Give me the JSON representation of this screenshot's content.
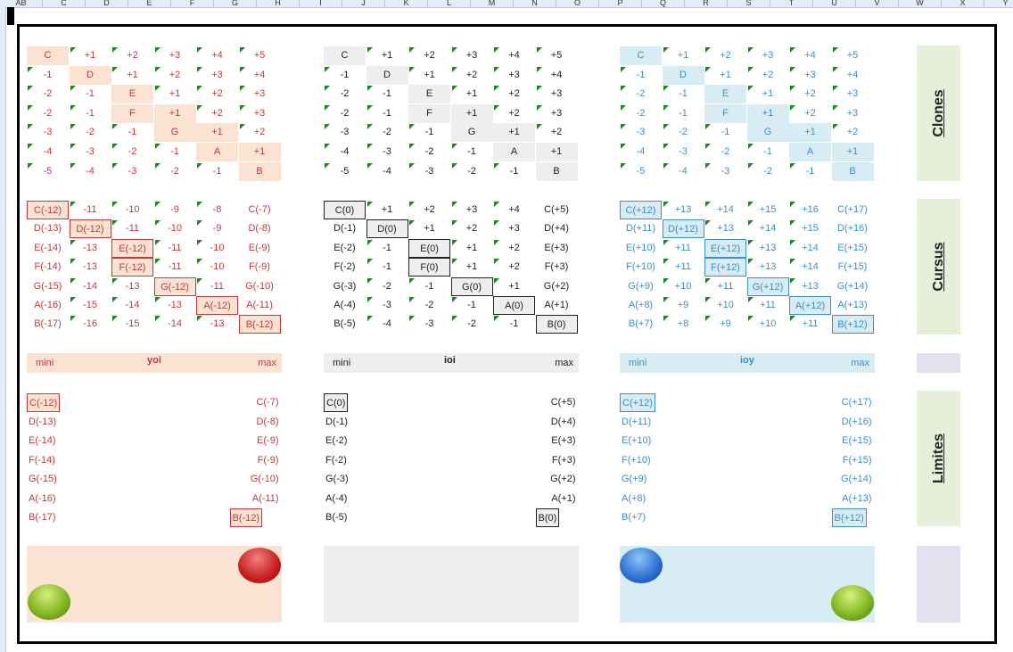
{
  "column_headers": [
    "AB",
    "C",
    "D",
    "E",
    "F",
    "G",
    "H",
    "I",
    "J",
    "K",
    "L",
    "M",
    "N",
    "O",
    "P",
    "Q",
    "R",
    "S",
    "T",
    "U",
    "V",
    "W",
    "X",
    "Y"
  ],
  "colors": {
    "red": "#c8383a",
    "gray": "#222222",
    "blue": "#3a8fd0",
    "red_bg": "#fbe3d3",
    "gray_bg": "#eeeeee",
    "blue_bg": "#d8edf3",
    "side_green": "#e6f0d8",
    "side_purple": "#e4e0ee"
  },
  "side_labels": {
    "clones": "Clones",
    "cursus": "Cursus",
    "limites": "Limites"
  },
  "clones": [
    [
      "C",
      "+1",
      "+2",
      "+3",
      "+4",
      "+5"
    ],
    [
      "-1",
      "D",
      "+1",
      "+2",
      "+3",
      "+4"
    ],
    [
      "-2",
      "-1",
      "E",
      "+1",
      "+2",
      "+3"
    ],
    [
      "-2",
      "-1",
      "F",
      "+1",
      "+2",
      "+3"
    ],
    [
      "-3",
      "-2",
      "-1",
      "G",
      "+1",
      "+2"
    ],
    [
      "-4",
      "-3",
      "-2",
      "-1",
      "A",
      "+1"
    ],
    [
      "-5",
      "-4",
      "-3",
      "-2",
      "-1",
      "B"
    ]
  ],
  "blocks": [
    {
      "key": "red",
      "band": {
        "mini": "mini",
        "name": "yoi",
        "max": "max"
      },
      "cursus": [
        [
          "C(-12)",
          "-11",
          "-10",
          "-9",
          "-8",
          "C(-7)"
        ],
        [
          "D(-13)",
          "D(-12)",
          "-11",
          "-10",
          "-9",
          "D(-8)"
        ],
        [
          "E(-14)",
          "-13",
          "E(-12)",
          "-11",
          "-10",
          "E(-9)"
        ],
        [
          "F(-14)",
          "-13",
          "F(-12)",
          "-11",
          "-10",
          "F(-9)"
        ],
        [
          "G(-15)",
          "-14",
          "-13",
          "G(-12)",
          "-11",
          "G(-10)"
        ],
        [
          "A(-16)",
          "-15",
          "-14",
          "-13",
          "A(-12)",
          "A(-11)"
        ],
        [
          "B(-17)",
          "-16",
          "-15",
          "-14",
          "-13",
          "B(-12)"
        ]
      ]
    },
    {
      "key": "gray",
      "band": {
        "mini": "mini",
        "name": "ioi",
        "max": "max"
      },
      "cursus": [
        [
          "C(0)",
          "+1",
          "+2",
          "+3",
          "+4",
          "C(+5)"
        ],
        [
          "D(-1)",
          "D(0)",
          "+1",
          "+2",
          "+3",
          "D(+4)"
        ],
        [
          "E(-2)",
          "-1",
          "E(0)",
          "+1",
          "+2",
          "E(+3)"
        ],
        [
          "F(-2)",
          "-1",
          "F(0)",
          "+1",
          "+2",
          "F(+3)"
        ],
        [
          "G(-3)",
          "-2",
          "-1",
          "G(0)",
          "+1",
          "G(+2)"
        ],
        [
          "A(-4)",
          "-3",
          "-2",
          "-1",
          "A(0)",
          "A(+1)"
        ],
        [
          "B(-5)",
          "-4",
          "-3",
          "-2",
          "-1",
          "B(0)"
        ]
      ]
    },
    {
      "key": "blue",
      "band": {
        "mini": "mini",
        "name": "ioy",
        "max": "max"
      },
      "cursus": [
        [
          "C(+12)",
          "+13",
          "+14",
          "+15",
          "+16",
          "C(+17)"
        ],
        [
          "D(+11)",
          "D(+12)",
          "+13",
          "+14",
          "+15",
          "D(+16)"
        ],
        [
          "E(+10)",
          "+11",
          "E(+12)",
          "+13",
          "+14",
          "E(+15)"
        ],
        [
          "F(+10)",
          "+11",
          "F(+12)",
          "+13",
          "+14",
          "F(+15)"
        ],
        [
          "G(+9)",
          "+10",
          "+11",
          "G(+12)",
          "+13",
          "G(+14)"
        ],
        [
          "A(+8)",
          "+9",
          "+10",
          "+11",
          "A(+12)",
          "A(+13)"
        ],
        [
          "B(+7)",
          "+8",
          "+9",
          "+10",
          "+11",
          "B(+12)"
        ]
      ]
    }
  ]
}
